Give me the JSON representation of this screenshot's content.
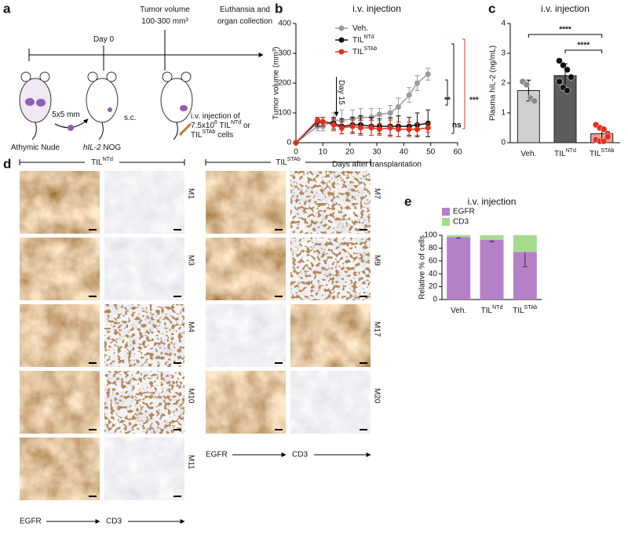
{
  "panel_labels": [
    "a",
    "b",
    "c",
    "d",
    "e"
  ],
  "schematic": {
    "day0": [
      [
        {
          "text": "Day 0"
        }
      ]
    ],
    "tumor_volume": [
      [
        {
          "text": "Tumor volume"
        }
      ],
      [
        {
          "text": "100-300 mm³"
        }
      ]
    ],
    "endpoint": [
      [
        {
          "text": "Euthansia and"
        }
      ],
      [
        {
          "text": "organ collection"
        }
      ]
    ],
    "mouse_1": [
      [
        {
          "text": "Athymic Nude"
        }
      ]
    ],
    "graft": [
      [
        {
          "text": "5x5 mm"
        }
      ]
    ],
    "mouse_2": [
      [
        {
          "italic": "hIL-2"
        },
        {
          "text": " NOG"
        }
      ]
    ],
    "route": [
      [
        {
          "text": "s.c."
        }
      ]
    ],
    "injection": [
      [
        {
          "text": "i.v. injection of"
        }
      ],
      [
        {
          "text": "7.5x10"
        },
        {
          "sup": "6"
        },
        {
          "text": " TIL"
        },
        {
          "sup": "NTd"
        },
        {
          "text": " or"
        }
      ],
      [
        {
          "text": "TIL"
        },
        {
          "sup": "STAb"
        },
        {
          "text": " cells"
        }
      ]
    ]
  },
  "histology": {
    "groups": [
      {
        "title": [
          [
            {
              "text": "TIL"
            },
            {
              "sup": "NTd"
            }
          ]
        ],
        "samples": [
          "M1",
          "M3",
          "M4",
          "M10",
          "M11"
        ],
        "stains": [
          "EGFR",
          "CD3"
        ]
      },
      {
        "title": [
          [
            {
              "text": "TIL"
            },
            {
              "sup": "STAb"
            }
          ]
        ],
        "samples": [
          "M7",
          "M9",
          "M17",
          "M20"
        ],
        "stains": [
          "EGFR",
          "CD3"
        ]
      }
    ]
  },
  "chart_data": [
    {
      "type": "line",
      "title": "i.v. injection",
      "xlabel": "Days after transplantation",
      "ylabel": "Tumor volume (mm³)",
      "x": [
        0,
        8,
        10,
        14,
        17,
        21,
        24,
        28,
        31,
        35,
        38,
        42,
        45,
        49
      ],
      "xlim": [
        0,
        60
      ],
      "xticks": [
        0,
        10,
        20,
        30,
        40,
        50,
        60
      ],
      "ylim": [
        0,
        400
      ],
      "yticks": [
        0,
        100,
        200,
        300,
        400
      ],
      "legend": "upper left",
      "series": [
        {
          "name": "Veh.",
          "color": "#9a9a9a",
          "values": [
            0,
            55,
            55,
            75,
            75,
            80,
            85,
            85,
            95,
            100,
            120,
            160,
            200,
            230
          ],
          "errors": [
            0,
            15,
            15,
            25,
            35,
            30,
            30,
            30,
            20,
            25,
            30,
            25,
            25,
            20
          ]
        },
        {
          "name": "TIL",
          "superscript": "NTd",
          "color": "#111111",
          "values": [
            0,
            70,
            70,
            65,
            55,
            60,
            60,
            55,
            55,
            55,
            55,
            55,
            60,
            65
          ],
          "errors": [
            0,
            15,
            15,
            20,
            25,
            25,
            30,
            30,
            25,
            30,
            35,
            30,
            40,
            45
          ]
        },
        {
          "name": "TIL",
          "superscript": "STAb",
          "color": "#e0301e",
          "values": [
            0,
            75,
            70,
            60,
            50,
            55,
            50,
            50,
            45,
            50,
            45,
            45,
            45,
            50
          ],
          "errors": [
            0,
            10,
            15,
            20,
            20,
            25,
            25,
            25,
            20,
            30,
            25,
            25,
            20,
            15
          ]
        }
      ],
      "arrow": {
        "text": "Day 15",
        "x": 15
      },
      "significance": [
        {
          "text": "**",
          "color": "#111111"
        },
        {
          "text": "***",
          "color": "#e0301e"
        },
        {
          "text": "ns",
          "color": "#111111"
        }
      ]
    },
    {
      "type": "bar",
      "title": "i.v. injection",
      "ylabel": "Plasma hIL-2 (ng/mL)",
      "categories": [
        "Veh.",
        "TIL",
        "TIL"
      ],
      "category_superscripts": [
        null,
        "NTd",
        "STAb"
      ],
      "values": [
        1.75,
        2.25,
        0.3
      ],
      "errors": [
        0.35,
        0.4,
        0.2
      ],
      "points": [
        [
          2.05,
          1.95,
          1.5,
          1.4
        ],
        [
          2.75,
          2.6,
          2.45,
          2.2,
          2.05,
          1.85,
          1.75
        ],
        [
          0.6,
          0.5,
          0.45,
          0.3,
          0.1,
          0.05,
          0.05,
          0.2
        ]
      ],
      "colors": [
        "#cfcfcf",
        "#5c5c5c",
        "#f19a94"
      ],
      "point_colors": [
        "#8a8a8a",
        "#111111",
        "#e0301e"
      ],
      "ylim": [
        0,
        4
      ],
      "yticks": [
        0,
        1,
        2,
        3,
        4
      ],
      "significance": [
        {
          "text": "****",
          "color": "#e0301e"
        },
        {
          "text": "****",
          "color": "#e0301e"
        }
      ]
    },
    {
      "type": "stacked_bar",
      "title": "i.v. injection",
      "ylabel": "Relative % of cells",
      "categories": [
        "Veh.",
        "TIL",
        "TIL"
      ],
      "category_superscripts": [
        null,
        "NTd",
        "STAb"
      ],
      "series": [
        {
          "name": "EGFR",
          "color": "#b481c9",
          "values": [
            97,
            93,
            74
          ],
          "errors": [
            1.5,
            3,
            23
          ]
        },
        {
          "name": "CD3",
          "color": "#a6db8e",
          "values": [
            3,
            7,
            26
          ]
        }
      ],
      "ylim": [
        0,
        100
      ],
      "yticks": [
        0,
        20,
        40,
        60,
        80,
        100
      ],
      "legend": "upper left"
    }
  ]
}
